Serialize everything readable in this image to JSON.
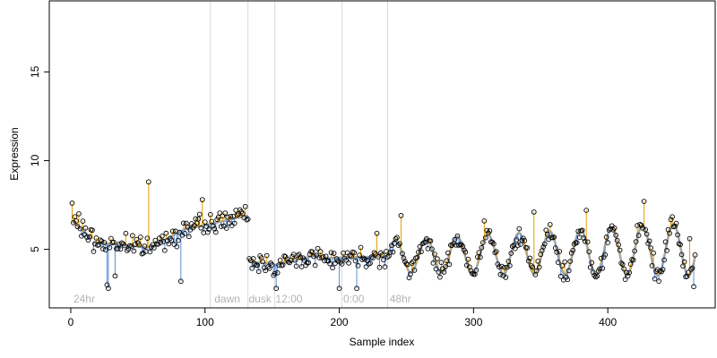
{
  "chart_data": {
    "type": "line",
    "title": "",
    "xlabel": "Sample index",
    "ylabel": "Expression",
    "xlim": [
      -16,
      480
    ],
    "ylim": [
      1.7,
      19.0
    ],
    "xticks": [
      0,
      100,
      200,
      300,
      400
    ],
    "yticks": [
      5,
      10,
      15
    ],
    "grid": false,
    "legend": "none",
    "colors": {
      "fitted": "#a6a6a6",
      "residual_up": "#e69f00",
      "residual_down": "#5b8fd6",
      "points_stroke": "#000000",
      "vline": "#d9d9d9",
      "annotation": "#b3b3b3"
    },
    "vlines": [
      104,
      132,
      152,
      202,
      236
    ],
    "annotations": [
      {
        "x": 2,
        "text": "24hr"
      },
      {
        "x": 107,
        "text": "dawn"
      },
      {
        "x": 132.5,
        "text": "dusk"
      },
      {
        "x": 152.5,
        "text": "12:00"
      },
      {
        "x": 203,
        "text": "0:00"
      },
      {
        "x": 237.5,
        "text": "48hr"
      }
    ],
    "segments": [
      {
        "x": [
          1,
          16
        ],
        "y": [
          6.6,
          5.6
        ]
      },
      {
        "x": [
          17,
          58
        ],
        "y": [
          5.4,
          5.1
        ]
      },
      {
        "x": [
          59,
          89
        ],
        "y": [
          5.1,
          6.3
        ]
      },
      {
        "x": [
          90,
          132
        ],
        "y": [
          6.2,
          6.9
        ]
      },
      {
        "x": [
          133,
          150
        ],
        "y": [
          4.3,
          4.2
        ]
      },
      {
        "x": [
          151,
          185
        ],
        "y": [
          4.1,
          4.7
        ]
      },
      {
        "x": [
          186,
          235
        ],
        "y": [
          4.5,
          4.6
        ]
      },
      {
        "x": [
          236,
          465
        ],
        "y": [
          4.6,
          5.0
        ]
      }
    ],
    "oscillation": {
      "start": 236,
      "period": 23,
      "amp_start": 0.9,
      "amp_end": 1.5
    },
    "anchors": [
      {
        "x": 1,
        "y": 7.6
      },
      {
        "x": 6,
        "y": 7.0
      },
      {
        "x": 11,
        "y": 6.2
      },
      {
        "x": 14,
        "y": 5.7
      },
      {
        "x": 27,
        "y": 3.0
      },
      {
        "x": 28,
        "y": 2.8
      },
      {
        "x": 33,
        "y": 3.5
      },
      {
        "x": 41,
        "y": 5.9
      },
      {
        "x": 58,
        "y": 8.8
      },
      {
        "x": 82,
        "y": 3.2
      },
      {
        "x": 98,
        "y": 7.8
      },
      {
        "x": 123,
        "y": 7.2
      },
      {
        "x": 132,
        "y": 6.7
      },
      {
        "x": 153,
        "y": 2.8
      },
      {
        "x": 200,
        "y": 2.8
      },
      {
        "x": 213,
        "y": 2.8
      },
      {
        "x": 228,
        "y": 5.9
      },
      {
        "x": 246,
        "y": 6.9
      },
      {
        "x": 308,
        "y": 6.6
      },
      {
        "x": 345,
        "y": 7.1
      },
      {
        "x": 384,
        "y": 7.2
      },
      {
        "x": 427,
        "y": 7.7
      },
      {
        "x": 461,
        "y": 5.6
      },
      {
        "x": 464,
        "y": 2.9
      }
    ]
  }
}
